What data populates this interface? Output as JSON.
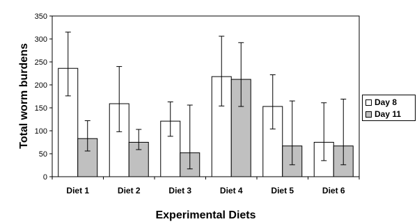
{
  "chart_data": {
    "type": "bar",
    "categories": [
      "Diet 1",
      "Diet 2",
      "Diet 3",
      "Diet 4",
      "Diet 5",
      "Diet 6"
    ],
    "series": [
      {
        "name": "Day 8",
        "color": "#ffffff",
        "values": [
          236,
          159,
          121,
          218,
          153,
          75
        ],
        "error_upper": [
          315,
          240,
          163,
          306,
          222,
          161
        ],
        "error_lower": [
          176,
          98,
          88,
          154,
          104,
          35
        ]
      },
      {
        "name": "Day 11",
        "color": "#c0c0c0",
        "values": [
          83,
          75,
          52,
          212,
          67,
          67
        ],
        "error_upper": [
          122,
          103,
          156,
          292,
          165,
          169
        ],
        "error_lower": [
          56,
          59,
          17,
          153,
          26,
          26
        ]
      }
    ],
    "xlabel": "Experimental Diets",
    "ylabel": "Total worm burdens",
    "ylim": [
      0,
      350
    ],
    "yticks": [
      "0",
      "50",
      "100",
      "150",
      "200",
      "250",
      "300",
      "350"
    ],
    "grid": false,
    "legend_position": "right"
  }
}
